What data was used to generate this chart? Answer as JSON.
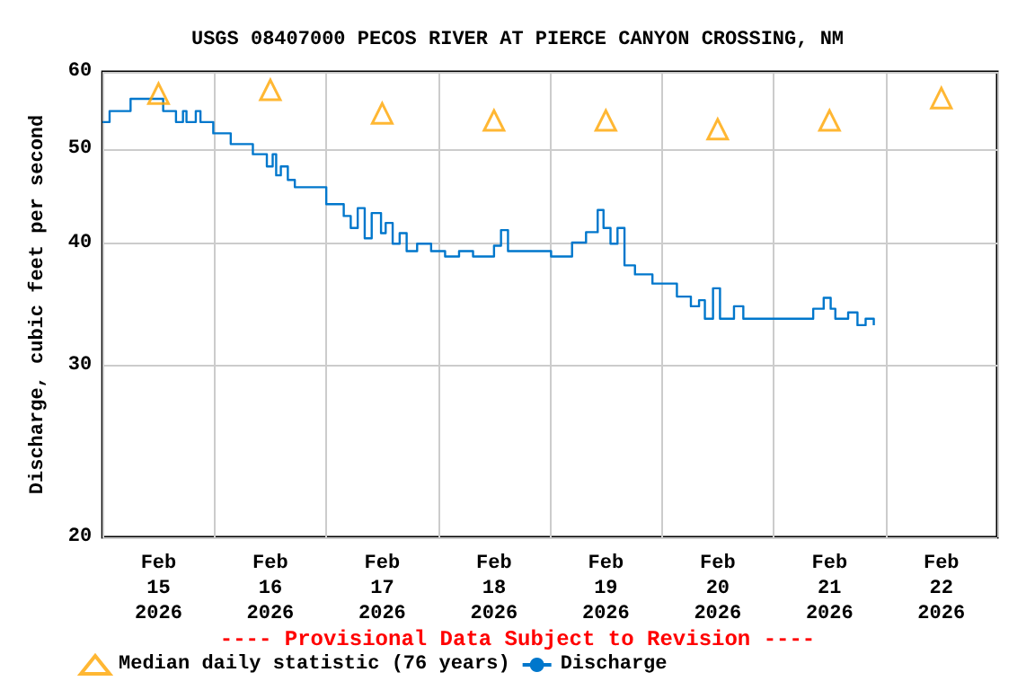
{
  "chart_data": {
    "type": "step",
    "title": "USGS 08407000 PECOS RIVER AT PIERCE CANYON CROSSING, NM",
    "ylabel": "Discharge, cubic feet per second",
    "annotations": [
      "---- Provisional Data Subject to Revision ----"
    ],
    "log": "y",
    "grid": true,
    "legend": "bottom",
    "xlim": [
      "2026-02-15T00:00",
      "2026-02-23T00:00"
    ],
    "xticks": [
      {
        "value": "2026-02-15T00:00",
        "label": null
      },
      {
        "value": "2026-02-15T12:00",
        "label": "Feb\n15\n2026"
      },
      {
        "value": "2026-02-16T00:00",
        "label": null
      },
      {
        "value": "2026-02-16T12:00",
        "label": "Feb\n16\n2026"
      },
      {
        "value": "2026-02-17T00:00",
        "label": null
      },
      {
        "value": "2026-02-17T12:00",
        "label": "Feb\n17\n2026"
      },
      {
        "value": "2026-02-18T00:00",
        "label": null
      },
      {
        "value": "2026-02-18T12:00",
        "label": "Feb\n18\n2026"
      },
      {
        "value": "2026-02-19T00:00",
        "label": null
      },
      {
        "value": "2026-02-19T12:00",
        "label": "Feb\n19\n2026"
      },
      {
        "value": "2026-02-20T00:00",
        "label": null
      },
      {
        "value": "2026-02-20T12:00",
        "label": "Feb\n20\n2026"
      },
      {
        "value": "2026-02-21T00:00",
        "label": null
      },
      {
        "value": "2026-02-21T12:00",
        "label": "Feb\n21\n2026"
      },
      {
        "value": "2026-02-22T00:00",
        "label": null
      },
      {
        "value": "2026-02-22T12:00",
        "label": "Feb\n22\n2026"
      },
      {
        "value": "2026-02-23T00:00",
        "label": null
      }
    ],
    "ylim": [
      20,
      60
    ],
    "yticks": [
      20,
      30,
      40,
      50,
      60
    ],
    "series": [
      {
        "name": "Median daily statistic (76 years)",
        "type": "scatter",
        "marker": "triangle",
        "color": "#ffa500",
        "x": [
          "2026-02-15T12:00",
          "2026-02-16T12:00",
          "2026-02-17T12:00",
          "2026-02-18T12:00",
          "2026-02-19T12:00",
          "2026-02-20T12:00",
          "2026-02-21T12:00",
          "2026-02-22T12:00"
        ],
        "values": [
          57.0,
          57.5,
          54.4,
          53.5,
          53.5,
          52.4,
          53.5,
          56.4
        ]
      },
      {
        "name": "Discharge",
        "marker": "none",
        "color": "#0077cc",
        "x": [
          "2026-02-15T00:00",
          "2026-02-15T01:30",
          "2026-02-15T06:00",
          "2026-02-15T12:15",
          "2026-02-15T13:00",
          "2026-02-15T15:45",
          "2026-02-15T17:15",
          "2026-02-15T18:00",
          "2026-02-15T20:00",
          "2026-02-15T21:00",
          "2026-02-15T23:45",
          "2026-02-16T03:30",
          "2026-02-16T08:15",
          "2026-02-16T11:15",
          "2026-02-16T12:30",
          "2026-02-16T13:15",
          "2026-02-16T14:15",
          "2026-02-16T15:45",
          "2026-02-16T17:15",
          "2026-02-17T00:00",
          "2026-02-17T03:45",
          "2026-02-17T05:15",
          "2026-02-17T06:45",
          "2026-02-17T08:15",
          "2026-02-17T09:45",
          "2026-02-17T11:45",
          "2026-02-17T12:45",
          "2026-02-17T14:15",
          "2026-02-17T15:45",
          "2026-02-17T17:15",
          "2026-02-17T19:30",
          "2026-02-17T22:30",
          "2026-02-18T01:30",
          "2026-02-18T04:30",
          "2026-02-18T07:30",
          "2026-02-18T12:00",
          "2026-02-18T13:30",
          "2026-02-18T15:00",
          "2026-02-18T20:30",
          "2026-02-19T00:15",
          "2026-02-19T04:45",
          "2026-02-19T07:45",
          "2026-02-19T10:15",
          "2026-02-19T11:30",
          "2026-02-19T13:00",
          "2026-02-19T14:30",
          "2026-02-19T16:00",
          "2026-02-19T18:15",
          "2026-02-19T22:00",
          "2026-02-20T03:15",
          "2026-02-20T06:15",
          "2026-02-20T08:00",
          "2026-02-20T09:15",
          "2026-02-20T11:00",
          "2026-02-20T12:30",
          "2026-02-20T15:30",
          "2026-02-20T17:30",
          "2026-02-20T21:15",
          "2026-02-21T01:00",
          "2026-02-21T06:00",
          "2026-02-21T08:30",
          "2026-02-21T10:45",
          "2026-02-21T12:15",
          "2026-02-21T13:15",
          "2026-02-21T16:00",
          "2026-02-21T18:00",
          "2026-02-21T19:45",
          "2026-02-21T21:30"
        ],
        "values": [
          53.3,
          54.7,
          56.3,
          56.3,
          54.7,
          53.3,
          54.7,
          53.3,
          54.7,
          53.3,
          51.9,
          50.6,
          49.4,
          48.0,
          49.4,
          47.0,
          48.0,
          46.5,
          45.7,
          43.9,
          42.7,
          41.5,
          43.5,
          40.5,
          43.0,
          41.0,
          42.0,
          40.0,
          41.0,
          39.3,
          40.0,
          39.3,
          38.8,
          39.3,
          38.8,
          39.8,
          41.3,
          39.3,
          39.3,
          38.8,
          40.1,
          41.1,
          43.3,
          41.5,
          40.0,
          41.5,
          38.0,
          37.2,
          36.4,
          35.3,
          34.5,
          35.0,
          33.5,
          36.0,
          33.5,
          34.5,
          33.5,
          33.5,
          33.5,
          33.5,
          34.3,
          35.2,
          34.3,
          33.5,
          34.0,
          33.0,
          33.5,
          33.0
        ]
      }
    ]
  }
}
